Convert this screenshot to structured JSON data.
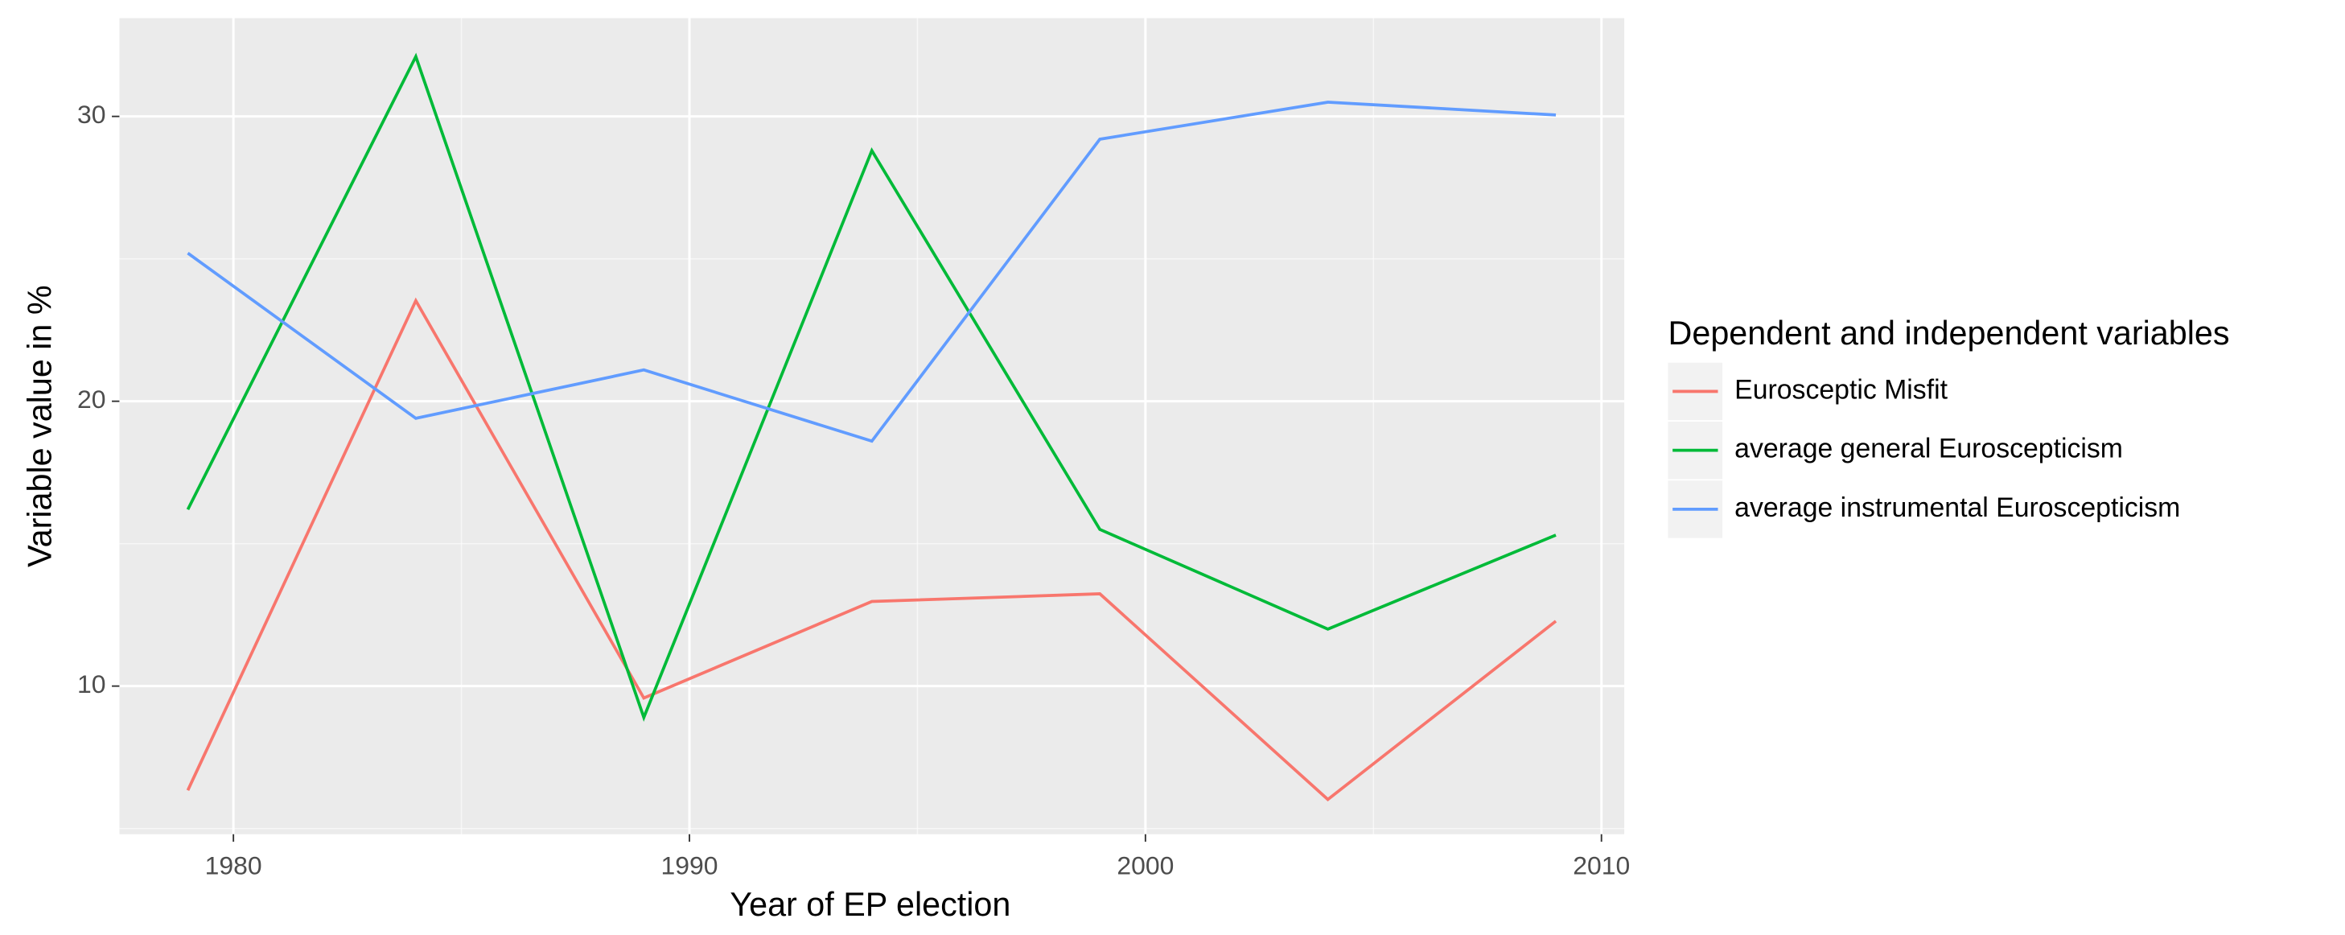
{
  "chart_data": {
    "type": "line",
    "x_label": "Year of EP election",
    "y_label": "Variable value in %",
    "legend_title": "Dependent and independent variables",
    "legend": "right",
    "grid": true,
    "minor_grid": true,
    "x": [
      1979,
      1984,
      1989,
      1994,
      1999,
      2004,
      2009
    ],
    "series": [
      {
        "name": "Eurosceptic Misfit",
        "color": "#F8766D",
        "values": [
          6.34,
          23.53,
          9.58,
          12.97,
          13.24,
          6.02,
          12.28
        ]
      },
      {
        "name": "average general Euroscepticism",
        "color": "#00BA38",
        "values": [
          16.2,
          32.1,
          8.9,
          28.8,
          15.5,
          12.0,
          15.3
        ]
      },
      {
        "name": "average instrumental Euroscepticism",
        "color": "#619CFF",
        "values": [
          25.2,
          19.4,
          21.1,
          18.6,
          29.2,
          30.5,
          30.05
        ]
      }
    ],
    "xlim": [
      1977.5,
      2010.5
    ],
    "xticks": [
      1980,
      1990,
      2000,
      2010
    ],
    "ylim": [
      4.8,
      33.45
    ],
    "yticks": [
      10,
      20,
      30
    ]
  }
}
